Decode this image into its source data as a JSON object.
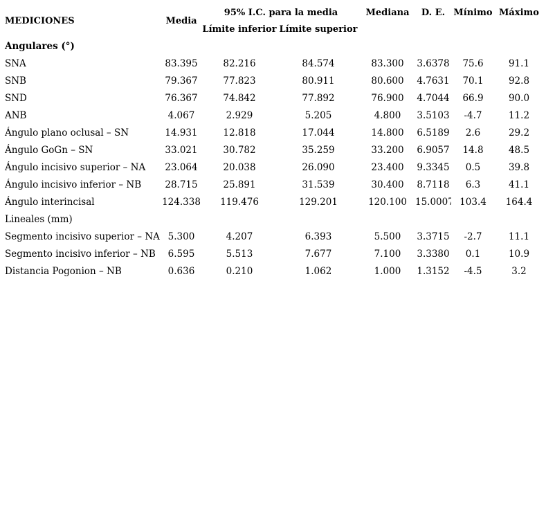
{
  "page": {
    "background_color": "#ffffff",
    "text_color": "#000000"
  },
  "table": {
    "headers": {
      "mediciones": "MEDICIONES",
      "media": "Media",
      "ci": "95% I.C. para la media",
      "ci_lower": "Límite inferior",
      "ci_upper": "Límite superior",
      "mediana": "Mediana",
      "de": "D. E.",
      "minimo": "Mínimo",
      "maximo": "Máximo"
    },
    "sections": [
      {
        "label": "Angulares (°)",
        "bold": true,
        "rows": [
          {
            "label": "SNA",
            "media": "83.395",
            "ci_lower": "82.216",
            "ci_upper": "84.574",
            "mediana": "83.300",
            "de": "3.6378",
            "minimo": "75.6",
            "maximo": "91.1"
          },
          {
            "label": "SNB",
            "media": "79.367",
            "ci_lower": "77.823",
            "ci_upper": "80.911",
            "mediana": "80.600",
            "de": "4.7631",
            "minimo": "70.1",
            "maximo": "92.8"
          },
          {
            "label": "SND",
            "media": "76.367",
            "ci_lower": "74.842",
            "ci_upper": "77.892",
            "mediana": "76.900",
            "de": "4.7044",
            "minimo": "66.9",
            "maximo": "90.0"
          },
          {
            "label": "ANB",
            "media": "4.067",
            "ci_lower": "2.929",
            "ci_upper": "5.205",
            "mediana": "4.800",
            "de": "3.5103",
            "minimo": "-4.7",
            "maximo": "11.2"
          },
          {
            "label": "Ángulo plano oclusal – SN",
            "media": "14.931",
            "ci_lower": "12.818",
            "ci_upper": "17.044",
            "mediana": "14.800",
            "de": "6.5189",
            "minimo": "2.6",
            "maximo": "29.2"
          },
          {
            "label": "Ángulo GoGn – SN",
            "media": "33.021",
            "ci_lower": "30.782",
            "ci_upper": "35.259",
            "mediana": "33.200",
            "de": "6.9057",
            "minimo": "14.8",
            "maximo": "48.5"
          },
          {
            "label": "Ángulo incisivo superior – NA",
            "media": "23.064",
            "ci_lower": "20.038",
            "ci_upper": "26.090",
            "mediana": "23.400",
            "de": "9.3345",
            "minimo": "0.5",
            "maximo": "39.8"
          },
          {
            "label": "Ángulo incisivo inferior – NB",
            "media": "28.715",
            "ci_lower": "25.891",
            "ci_upper": "31.539",
            "mediana": "30.400",
            "de": "8.7118",
            "minimo": "6.3",
            "maximo": "41.1"
          },
          {
            "label": "Ángulo interincisal",
            "media": "124.338",
            "ci_lower": "119.476",
            "ci_upper": "129.201",
            "mediana": "120.100",
            "de": "15.0007",
            "minimo": "103.4",
            "maximo": "164.4"
          }
        ]
      },
      {
        "label": "Lineales (mm)",
        "bold": false,
        "rows": [
          {
            "label": "Segmento incisivo superior – NA",
            "media": "5.300",
            "ci_lower": "4.207",
            "ci_upper": "6.393",
            "mediana": "5.500",
            "de": "3.3715",
            "minimo": "-2.7",
            "maximo": "11.1"
          },
          {
            "label": "Segmento incisivo inferior – NB",
            "media": "6.595",
            "ci_lower": "5.513",
            "ci_upper": "7.677",
            "mediana": "7.100",
            "de": "3.3380",
            "minimo": "0.1",
            "maximo": "10.9"
          },
          {
            "label": "Distancia Pogonion – NB",
            "media": "0.636",
            "ci_lower": "0.210",
            "ci_upper": "1.062",
            "mediana": "1.000",
            "de": "1.3152",
            "minimo": "-4.5",
            "maximo": "3.2"
          }
        ]
      }
    ]
  }
}
